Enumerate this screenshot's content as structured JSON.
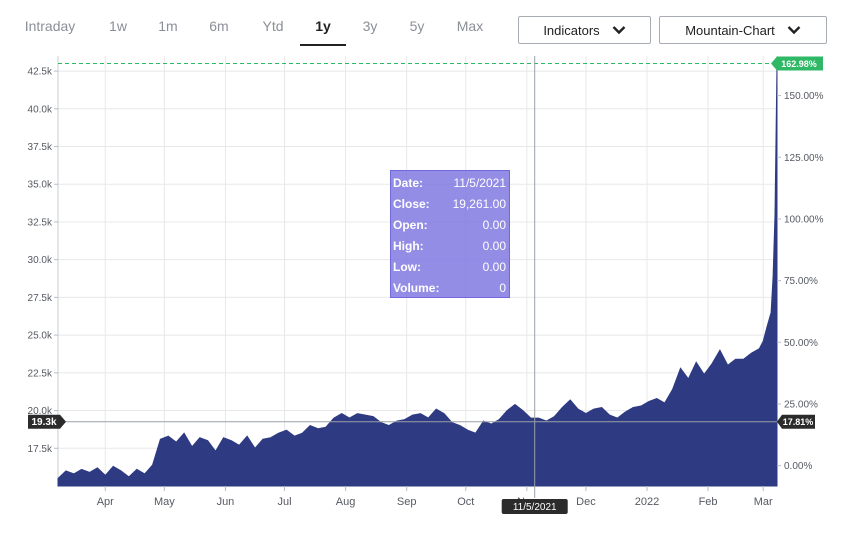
{
  "toolbar": {
    "ranges": [
      "Intraday",
      "1w",
      "1m",
      "6m",
      "Ytd",
      "1y",
      "3y",
      "5y",
      "Max"
    ],
    "active_range": "1y",
    "indicators_label": "Indicators",
    "chart_type_label": "Mountain-Chart"
  },
  "tooltip": {
    "rows": [
      {
        "key": "Date:",
        "value": "11/5/2021"
      },
      {
        "key": "Close:",
        "value": "19,261.00"
      },
      {
        "key": "Open:",
        "value": "0.00"
      },
      {
        "key": "High:",
        "value": "0.00"
      },
      {
        "key": "Low:",
        "value": "0.00"
      },
      {
        "key": "Volume:",
        "value": "0"
      }
    ]
  },
  "crosshair": {
    "y_label": "19.3k",
    "x_label": "11/5/2021",
    "pct_label": "17.81%"
  },
  "colors": {
    "area": "#2e3a82",
    "last_price_badge": "#2fb865",
    "crosshair_label_bg": "#2b2b2b",
    "tooltip_bg": "#7c74e0",
    "grid": "#e8e8e8"
  },
  "chart_data": {
    "type": "area",
    "title": "",
    "xlabel": "",
    "ylabel": "",
    "ylim": [
      15000,
      43500
    ],
    "y_ticks": [
      "17.5k",
      "20.0k",
      "22.5k",
      "25.0k",
      "27.5k",
      "30.0k",
      "32.5k",
      "35.0k",
      "37.5k",
      "40.0k",
      "42.5k"
    ],
    "y_tick_values": [
      17500,
      20000,
      22500,
      25000,
      27500,
      30000,
      32500,
      35000,
      37500,
      40000,
      42500
    ],
    "pct_ticks": [
      "0.00%",
      "25.00%",
      "50.00%",
      "75.00%",
      "100.00%",
      "125.00%",
      "150.00%"
    ],
    "pct_tick_values": [
      0,
      25,
      50,
      75,
      100,
      125,
      150
    ],
    "base_value": 16350,
    "x_labels": [
      "Apr",
      "May",
      "Jun",
      "Jul",
      "Aug",
      "Sep",
      "Oct",
      "Nov",
      "Dec",
      "2022",
      "Feb",
      "Mar"
    ],
    "x_label_positions": [
      "2021-04-01",
      "2021-05-01",
      "2021-06-01",
      "2021-07-01",
      "2021-08-01",
      "2021-09-01",
      "2021-10-01",
      "2021-11-01",
      "2021-12-01",
      "2022-01-01",
      "2022-02-01",
      "2022-03-01"
    ],
    "x_range": [
      "2021-03-08",
      "2022-03-08"
    ],
    "last_value": 43000,
    "last_pct_label": "162.98%",
    "series": [
      {
        "x": [
          "2021-03-08",
          "2021-03-12",
          "2021-03-16",
          "2021-03-20",
          "2021-03-24",
          "2021-03-28",
          "2021-04-01",
          "2021-04-05",
          "2021-04-09",
          "2021-04-13",
          "2021-04-17",
          "2021-04-21",
          "2021-04-25",
          "2021-04-29",
          "2021-05-03",
          "2021-05-07",
          "2021-05-11",
          "2021-05-15",
          "2021-05-19",
          "2021-05-23",
          "2021-05-27",
          "2021-05-31",
          "2021-06-04",
          "2021-06-08",
          "2021-06-12",
          "2021-06-16",
          "2021-06-20",
          "2021-06-24",
          "2021-06-28",
          "2021-07-02",
          "2021-07-06",
          "2021-07-10",
          "2021-07-14",
          "2021-07-18",
          "2021-07-22",
          "2021-07-26",
          "2021-07-30",
          "2021-08-03",
          "2021-08-07",
          "2021-08-11",
          "2021-08-15",
          "2021-08-19",
          "2021-08-23",
          "2021-08-27",
          "2021-08-31",
          "2021-09-04",
          "2021-09-08",
          "2021-09-12",
          "2021-09-16",
          "2021-09-20",
          "2021-09-24",
          "2021-09-28",
          "2021-10-02",
          "2021-10-06",
          "2021-10-10",
          "2021-10-14",
          "2021-10-18",
          "2021-10-22",
          "2021-10-26",
          "2021-10-30",
          "2021-11-03",
          "2021-11-07",
          "2021-11-11",
          "2021-11-15",
          "2021-11-19",
          "2021-11-23",
          "2021-11-27",
          "2021-12-01",
          "2021-12-05",
          "2021-12-09",
          "2021-12-13",
          "2021-12-17",
          "2021-12-21",
          "2021-12-25",
          "2021-12-29",
          "2022-01-02",
          "2022-01-06",
          "2022-01-10",
          "2022-01-14",
          "2022-01-18",
          "2022-01-22",
          "2022-01-26",
          "2022-01-30",
          "2022-02-03",
          "2022-02-07",
          "2022-02-11",
          "2022-02-15",
          "2022-02-19",
          "2022-02-23",
          "2022-02-27",
          "2022-03-01",
          "2022-03-03",
          "2022-03-05",
          "2022-03-06",
          "2022-03-07",
          "2022-03-08"
        ],
        "values": [
          15500,
          16000,
          15800,
          16100,
          15900,
          16200,
          15700,
          16300,
          16000,
          15600,
          16100,
          15800,
          16400,
          18100,
          18300,
          17900,
          18500,
          17600,
          18200,
          18000,
          17300,
          18200,
          18000,
          17700,
          18300,
          17500,
          18100,
          18200,
          18500,
          18700,
          18300,
          18500,
          19000,
          18800,
          18900,
          19500,
          19800,
          19500,
          19800,
          19700,
          19600,
          19200,
          19000,
          19300,
          19400,
          19700,
          19800,
          19500,
          20100,
          19800,
          19200,
          19000,
          18700,
          18500,
          19300,
          19100,
          19400,
          20000,
          20400,
          20000,
          19500,
          19500,
          19300,
          19600,
          20200,
          20700,
          20100,
          19800,
          20100,
          20200,
          19700,
          19500,
          19900,
          20200,
          20300,
          20600,
          20800,
          20500,
          21400,
          22800,
          22100,
          23200,
          22400,
          23100,
          24000,
          23000,
          23400,
          23400,
          23800,
          24100,
          24600,
          25600,
          26500,
          28900,
          33000,
          43000
        ]
      }
    ]
  }
}
